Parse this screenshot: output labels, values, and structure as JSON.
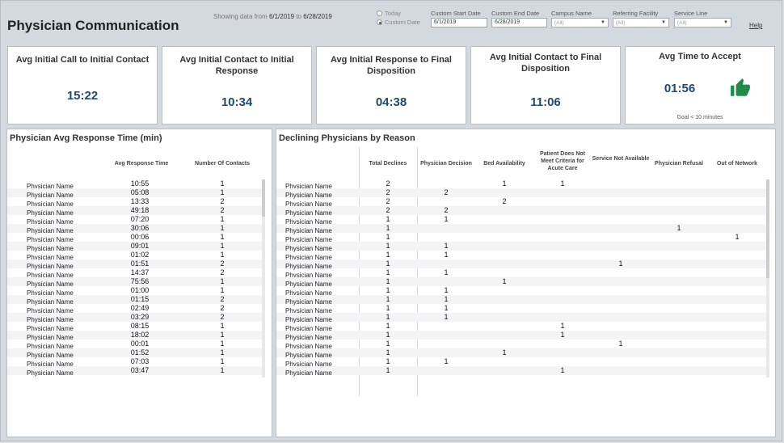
{
  "header": {
    "title": "Physician Communication",
    "showing_prefix": "Showing data from",
    "start": "6/1/2019",
    "to": "to",
    "end": "6/28/2019",
    "help": "Help"
  },
  "filters": {
    "radio_today": "Today",
    "radio_custom": "Custom Date",
    "start_label": "Custom Start Date",
    "start_value": "6/1/2019",
    "end_label": "Custom End Date",
    "end_value": "6/28/2019",
    "campus_label": "Campus Name",
    "campus_value": "(All)",
    "referring_label": "Referring Facility",
    "referring_value": "(All)",
    "service_label": "Service Line",
    "service_value": "(All)"
  },
  "kpis": [
    {
      "title": "Avg Initial Call to Initial Contact",
      "value": "15:22"
    },
    {
      "title": "Avg Initial Contact to Initial Response",
      "value": "10:34"
    },
    {
      "title": "Avg Initial Response to Final Disposition",
      "value": "04:38"
    },
    {
      "title": "Avg Initial Contact to Final Disposition",
      "value": "11:06"
    },
    {
      "title": "Avg Time to Accept",
      "value": "01:56",
      "goal": "Goal < 10 minutes",
      "icon": "thumbs-up-icon",
      "accent": "#1e8a4c"
    }
  ],
  "response_panel": {
    "title": "Physician Avg Response Time (min)",
    "col_time": "Avg Response Time",
    "col_contacts": "Number Of Contacts",
    "rows": [
      {
        "name": "Physician Name",
        "time": "10:55",
        "contacts": "1"
      },
      {
        "name": "Physician Name",
        "time": "05:08",
        "contacts": "1"
      },
      {
        "name": "Physician Name",
        "time": "13:33",
        "contacts": "2"
      },
      {
        "name": "Physician Name",
        "time": "49:18",
        "contacts": "2"
      },
      {
        "name": "Physician Name",
        "time": "07:20",
        "contacts": "1"
      },
      {
        "name": "Physician Name",
        "time": "30:06",
        "contacts": "1"
      },
      {
        "name": "Physician Name",
        "time": "00:06",
        "contacts": "1"
      },
      {
        "name": "Physician Name",
        "time": "09:01",
        "contacts": "1"
      },
      {
        "name": "Physician Name",
        "time": "01:02",
        "contacts": "1"
      },
      {
        "name": "Physician Name",
        "time": "01:51",
        "contacts": "2"
      },
      {
        "name": "Physician Name",
        "time": "14:37",
        "contacts": "2"
      },
      {
        "name": "Physician Name",
        "time": "75:56",
        "contacts": "1"
      },
      {
        "name": "Physician Name",
        "time": "01:00",
        "contacts": "1"
      },
      {
        "name": "Physician Name",
        "time": "01:15",
        "contacts": "2"
      },
      {
        "name": "Physician Name",
        "time": "02:49",
        "contacts": "2"
      },
      {
        "name": "Physician Name",
        "time": "03:29",
        "contacts": "2"
      },
      {
        "name": "Physician Name",
        "time": "08:15",
        "contacts": "1"
      },
      {
        "name": "Physician Name",
        "time": "18:02",
        "contacts": "1"
      },
      {
        "name": "Physician Name",
        "time": "00:01",
        "contacts": "1"
      },
      {
        "name": "Physician Name",
        "time": "01:52",
        "contacts": "1"
      },
      {
        "name": "Physician Name",
        "time": "07:03",
        "contacts": "1"
      },
      {
        "name": "Physician Name",
        "time": "03:47",
        "contacts": "1"
      }
    ]
  },
  "decline_panel": {
    "title": "Declining Physicians by Reason",
    "columns": [
      "Total Declines",
      "Physician Decision",
      "Bed Availability",
      "Patient Does Not Meet Criteria for Acute Care",
      "Service Not Available",
      "Physician Refusal",
      "Out of Network"
    ],
    "rows": [
      {
        "name": "Physician Name",
        "v": [
          "2",
          "",
          "1",
          "1",
          "",
          "",
          ""
        ]
      },
      {
        "name": "Physician Name",
        "v": [
          "2",
          "2",
          "",
          "",
          "",
          "",
          ""
        ]
      },
      {
        "name": "Physician Name",
        "v": [
          "2",
          "",
          "2",
          "",
          "",
          "",
          ""
        ]
      },
      {
        "name": "Physician Name",
        "v": [
          "2",
          "2",
          "",
          "",
          "",
          "",
          ""
        ]
      },
      {
        "name": "Physician Name",
        "v": [
          "1",
          "1",
          "",
          "",
          "",
          "",
          ""
        ]
      },
      {
        "name": "Physician Name",
        "v": [
          "1",
          "",
          "",
          "",
          "",
          "1",
          ""
        ]
      },
      {
        "name": "Physician Name",
        "v": [
          "1",
          "",
          "",
          "",
          "",
          "",
          "1"
        ]
      },
      {
        "name": "Physician Name",
        "v": [
          "1",
          "1",
          "",
          "",
          "",
          "",
          ""
        ]
      },
      {
        "name": "Physician Name",
        "v": [
          "1",
          "1",
          "",
          "",
          "",
          "",
          ""
        ]
      },
      {
        "name": "Physician Name",
        "v": [
          "1",
          "",
          "",
          "",
          "1",
          "",
          ""
        ]
      },
      {
        "name": "Physician Name",
        "v": [
          "1",
          "1",
          "",
          "",
          "",
          "",
          ""
        ]
      },
      {
        "name": "Physician Name",
        "v": [
          "1",
          "",
          "1",
          "",
          "",
          "",
          ""
        ]
      },
      {
        "name": "Physician Name",
        "v": [
          "1",
          "1",
          "",
          "",
          "",
          "",
          ""
        ]
      },
      {
        "name": "Physician Name",
        "v": [
          "1",
          "1",
          "",
          "",
          "",
          "",
          ""
        ]
      },
      {
        "name": "Physician Name",
        "v": [
          "1",
          "1",
          "",
          "",
          "",
          "",
          ""
        ]
      },
      {
        "name": "Physician Name",
        "v": [
          "1",
          "1",
          "",
          "",
          "",
          "",
          ""
        ]
      },
      {
        "name": "Physician Name",
        "v": [
          "1",
          "",
          "",
          "1",
          "",
          "",
          ""
        ]
      },
      {
        "name": "Physician Name",
        "v": [
          "1",
          "",
          "",
          "1",
          "",
          "",
          ""
        ]
      },
      {
        "name": "Physician Name",
        "v": [
          "1",
          "",
          "",
          "",
          "1",
          "",
          ""
        ]
      },
      {
        "name": "Physician Name",
        "v": [
          "1",
          "",
          "1",
          "",
          "",
          "",
          ""
        ]
      },
      {
        "name": "Physician Name",
        "v": [
          "1",
          "1",
          "",
          "",
          "",
          "",
          ""
        ]
      },
      {
        "name": "Physician Name",
        "v": [
          "1",
          "",
          "",
          "1",
          "",
          "",
          ""
        ]
      }
    ]
  }
}
